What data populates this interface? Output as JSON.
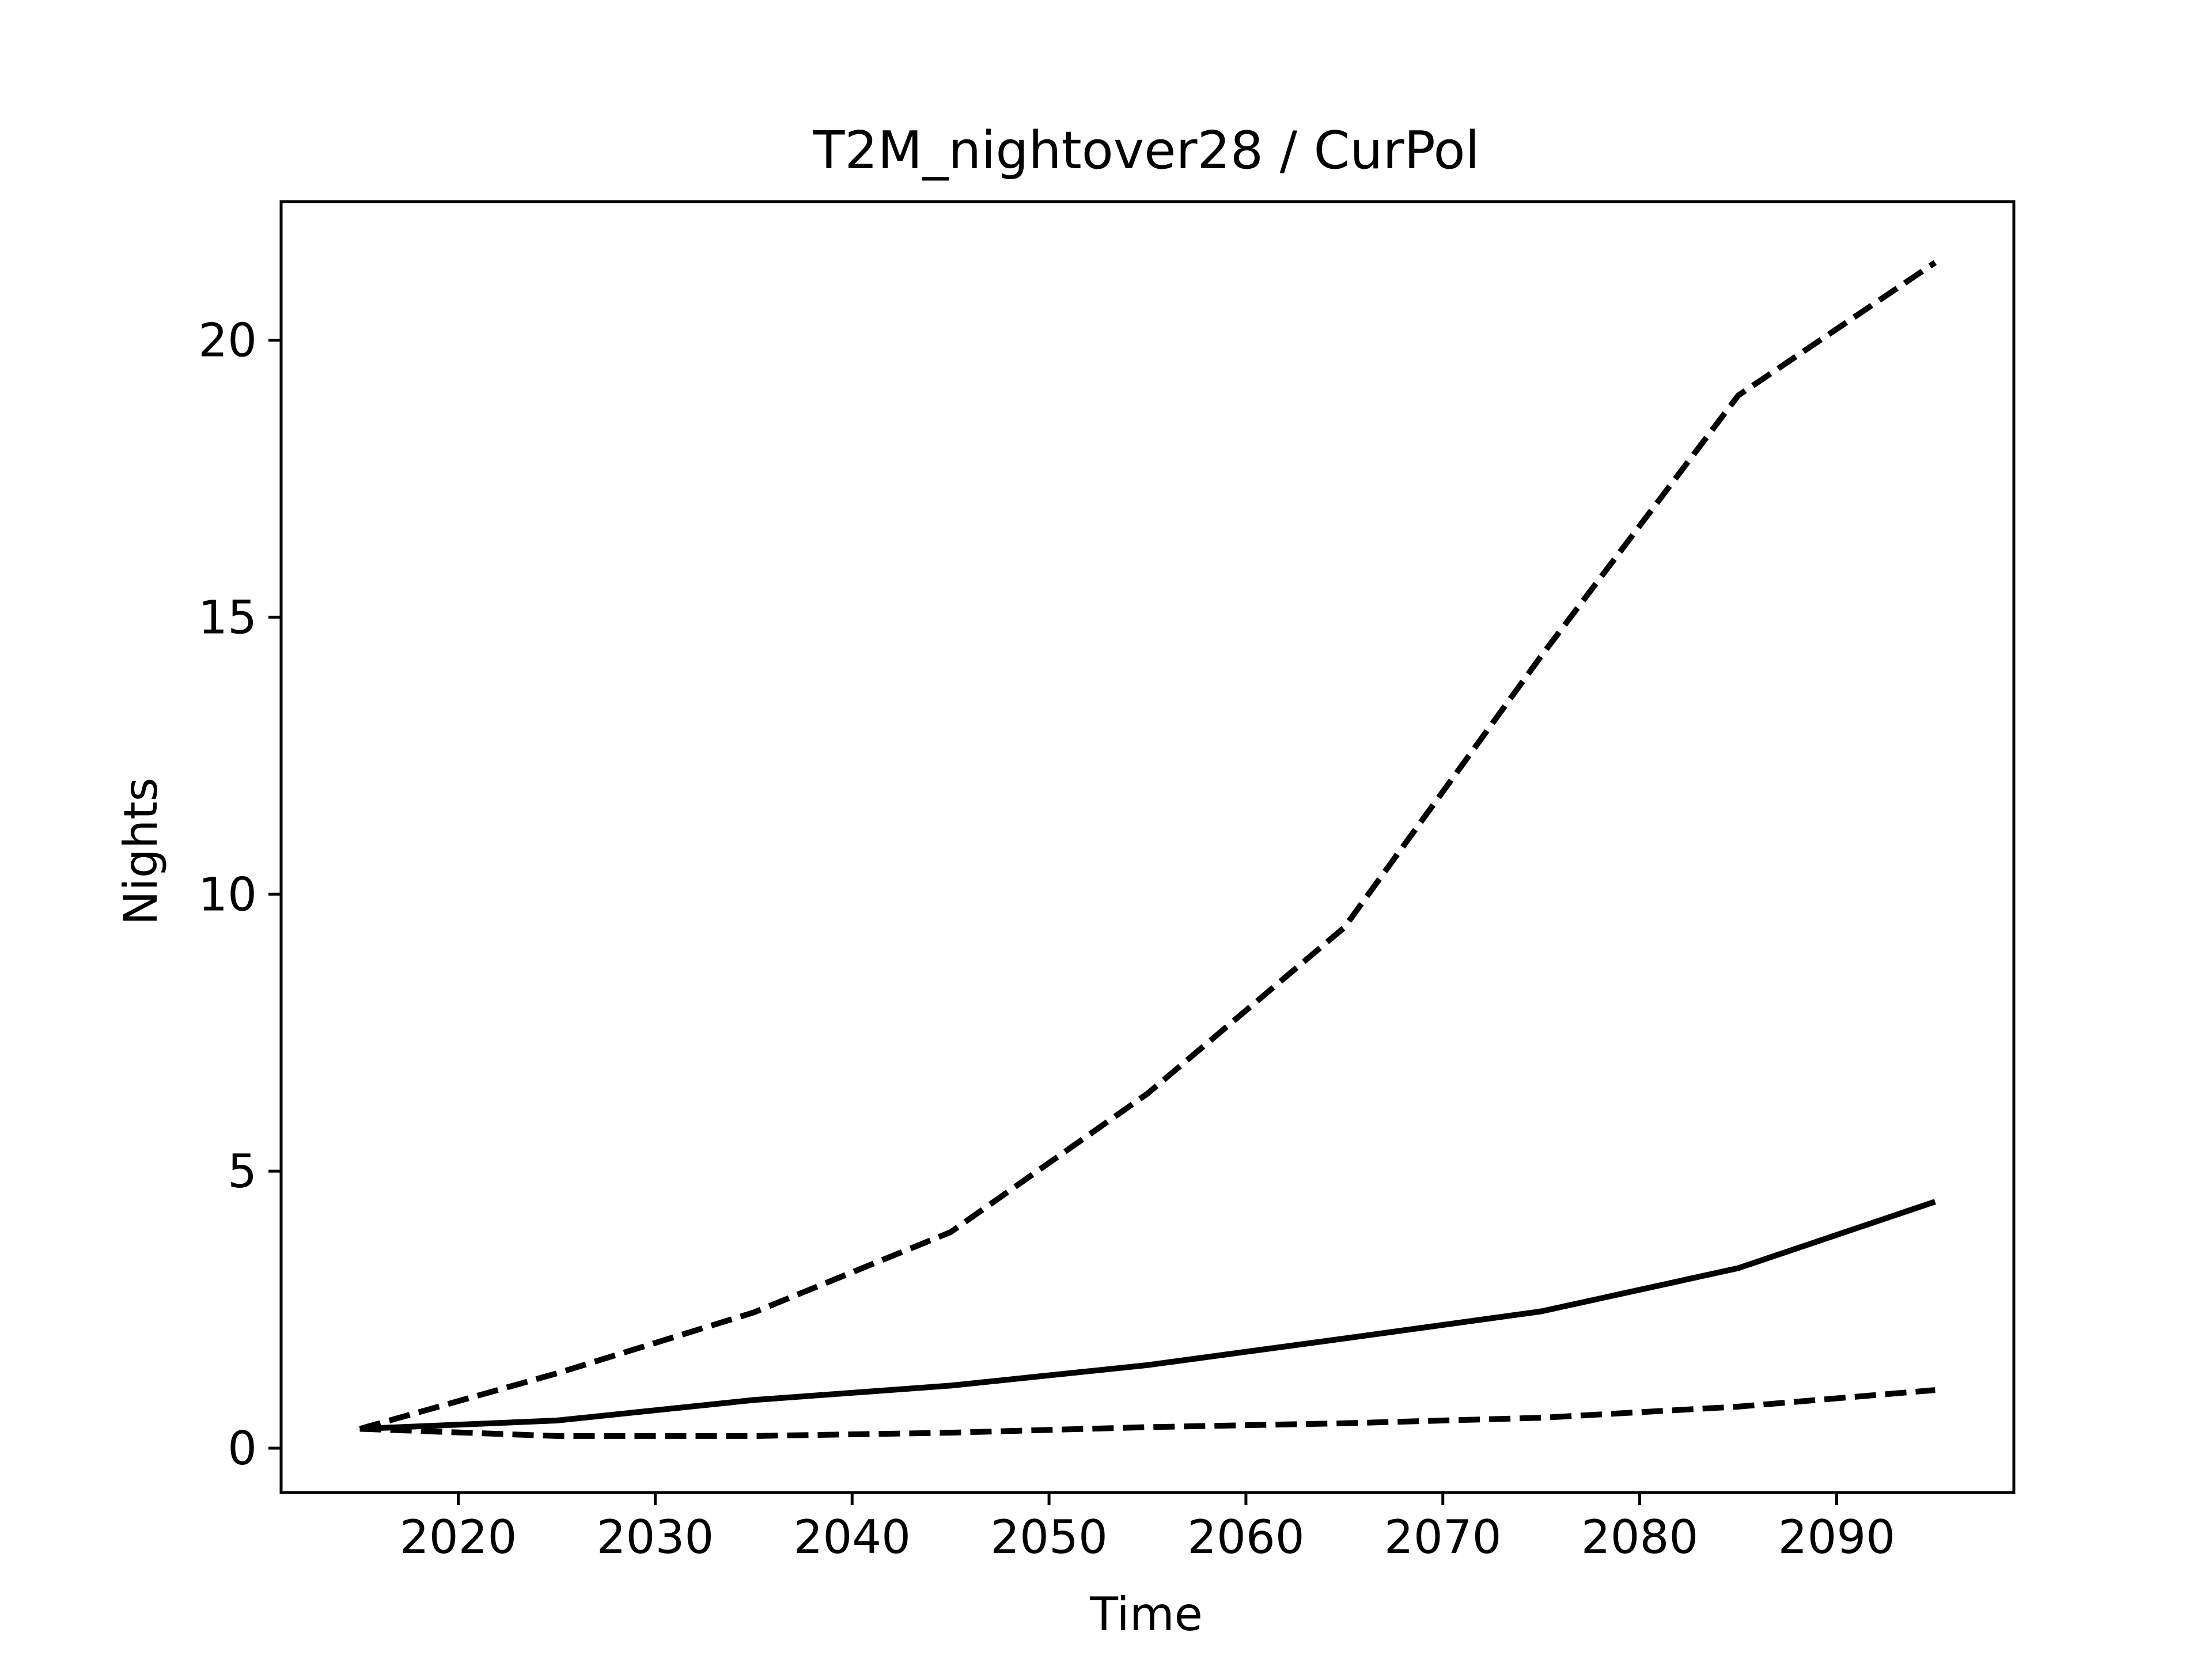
{
  "chart_data": {
    "type": "line",
    "title": "T2M_nightover28 / CurPol",
    "xlabel": "Time",
    "ylabel": "Nights",
    "xlim": [
      2011,
      2099
    ],
    "ylim": [
      -0.8,
      22.5
    ],
    "xticks": [
      2020,
      2030,
      2040,
      2050,
      2060,
      2070,
      2080,
      2090
    ],
    "yticks": [
      0,
      5,
      10,
      15,
      20
    ],
    "grid": false,
    "legend": "none",
    "x": [
      2015,
      2025,
      2035,
      2045,
      2055,
      2065,
      2075,
      2085,
      2095
    ],
    "series": [
      {
        "style": "dashed",
        "color": "#000000",
        "values": [
          0.35,
          1.35,
          2.45,
          3.9,
          6.4,
          9.4,
          14.3,
          19.0,
          21.4
        ]
      },
      {
        "style": "solid",
        "color": "#000000",
        "values": [
          0.35,
          0.5,
          0.87,
          1.13,
          1.5,
          1.98,
          2.47,
          3.25,
          4.45
        ]
      },
      {
        "style": "dashed",
        "color": "#000000",
        "values": [
          0.35,
          0.22,
          0.22,
          0.28,
          0.38,
          0.45,
          0.55,
          0.75,
          1.05
        ]
      }
    ]
  }
}
